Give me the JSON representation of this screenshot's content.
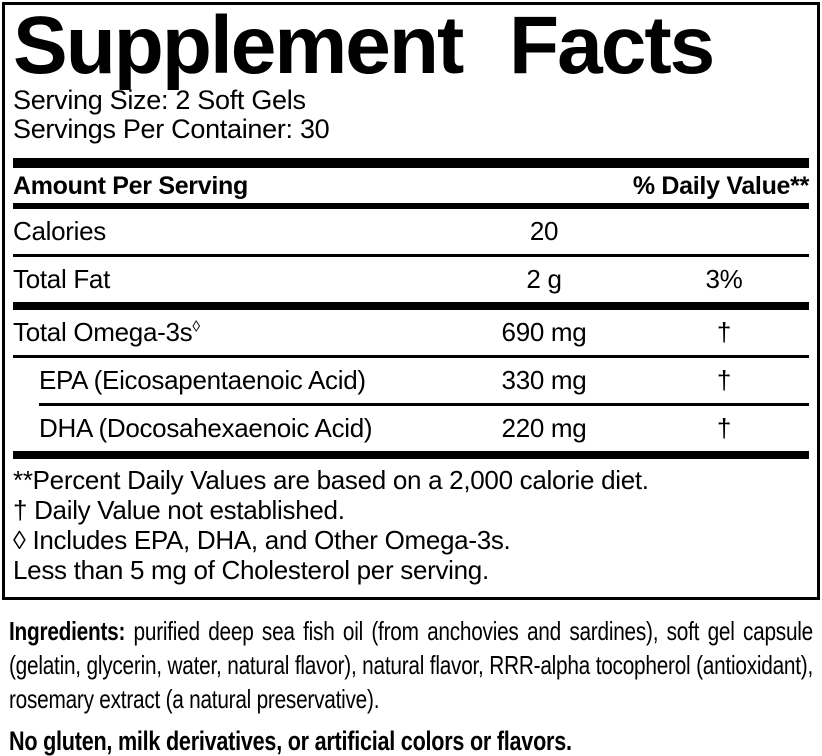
{
  "label": {
    "title": "Supplement Facts",
    "serving_size": "Serving Size: 2 Soft Gels",
    "servings_per_container": "Servings Per Container: 30"
  },
  "table": {
    "header_left": "Amount Per Serving",
    "header_right": "% Daily Value**",
    "rows": [
      {
        "name": "Calories",
        "amount": "20",
        "dv": ""
      },
      {
        "name": "Total Fat",
        "amount": "2 g",
        "dv": "3%"
      },
      {
        "name": "Total Omega-3s",
        "name_sup": "◊",
        "amount": "690 mg",
        "dv": "†"
      },
      {
        "name": "EPA (Eicosapentaenoic Acid)",
        "amount": "330 mg",
        "dv": "†"
      },
      {
        "name": "DHA (Docosahexaenoic Acid)",
        "amount": "220 mg",
        "dv": "†"
      }
    ]
  },
  "footnotes": [
    "**Percent Daily Values are based on a 2,000 calorie diet.",
    "† Daily Value not established.",
    "◊ Includes EPA, DHA, and Other Omega-3s.",
    "Less than 5 mg of Cholesterol per serving."
  ],
  "ingredients": {
    "label": "Ingredients:",
    "text": " purified deep sea fish oil (from anchovies and sardines), soft gel capsule (gelatin, glycerin, water, natural flavor), natural flavor, RRR-alpha tocopherol (antioxidant), rosemary extract (a natural preservative)."
  },
  "allergen_statement": "No gluten, milk derivatives, or artificial colors or flavors.",
  "colors": {
    "text": "#000000",
    "background": "#ffffff",
    "rule": "#000000"
  }
}
